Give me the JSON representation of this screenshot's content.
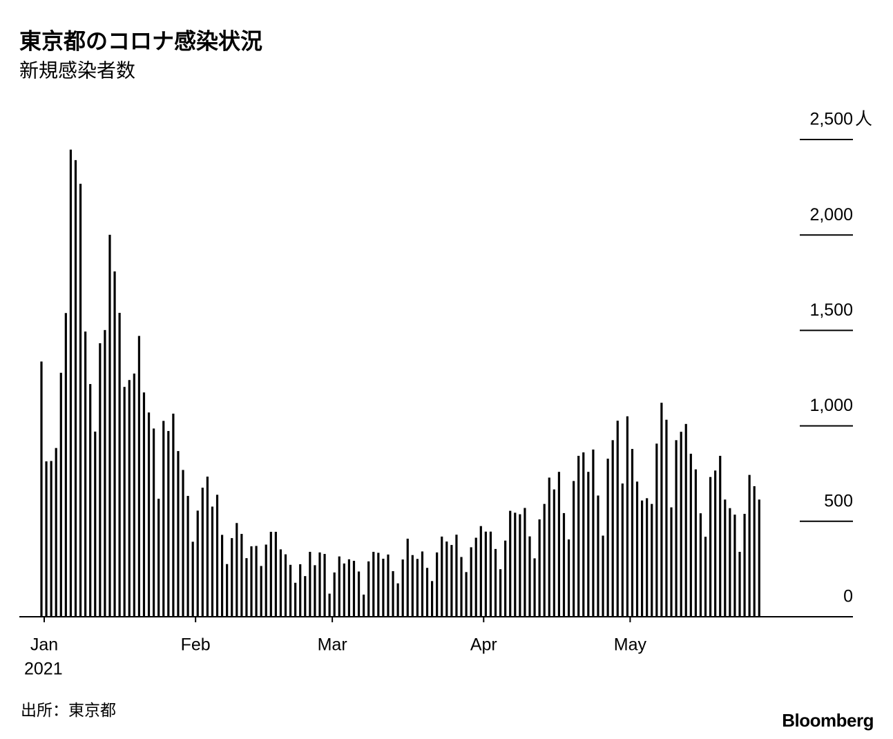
{
  "chart_data": {
    "type": "bar",
    "title": "東京都のコロナ感染状況",
    "subtitle": "新規感染者数",
    "source": "出所：東京都",
    "brand": "Bloomberg",
    "y_unit": "人",
    "x_year_label": "2021",
    "color": "#000000",
    "grid": true,
    "ylim": [
      0,
      2500
    ],
    "yticks": [
      0,
      500,
      {
        "value": 1000,
        "label": "1,000"
      },
      {
        "value": 1500,
        "label": "1,500"
      },
      {
        "value": 2000,
        "label": "2,000"
      },
      {
        "value": 2500,
        "label": "2,500"
      }
    ],
    "categories": [
      "Jan",
      null,
      null,
      null,
      null,
      null,
      null,
      null,
      null,
      null,
      null,
      null,
      null,
      null,
      null,
      null,
      null,
      null,
      null,
      null,
      null,
      null,
      null,
      null,
      null,
      null,
      null,
      null,
      null,
      null,
      null,
      "Feb",
      null,
      null,
      null,
      null,
      null,
      null,
      null,
      null,
      null,
      null,
      null,
      null,
      null,
      null,
      null,
      null,
      null,
      null,
      null,
      null,
      null,
      null,
      null,
      null,
      null,
      null,
      null,
      "Mar",
      null,
      null,
      null,
      null,
      null,
      null,
      null,
      null,
      null,
      null,
      null,
      null,
      null,
      null,
      null,
      null,
      null,
      null,
      null,
      null,
      null,
      null,
      null,
      null,
      null,
      null,
      null,
      null,
      null,
      null,
      "Apr",
      null,
      null,
      null,
      null,
      null,
      null,
      null,
      null,
      null,
      null,
      null,
      null,
      null,
      null,
      null,
      null,
      null,
      null,
      null,
      null,
      null,
      null,
      null,
      null,
      null,
      null,
      null,
      null,
      null,
      "May",
      null,
      null,
      null,
      null,
      null,
      null,
      null,
      null,
      null,
      null,
      null,
      null,
      null,
      null,
      null,
      null,
      null,
      null,
      null,
      null,
      null,
      null,
      null,
      null,
      null,
      null,
      null
    ],
    "values": [
      1337,
      814,
      816,
      884,
      1278,
      1591,
      2447,
      2392,
      2268,
      1494,
      1219,
      970,
      1433,
      1502,
      2001,
      1809,
      1592,
      1204,
      1240,
      1274,
      1471,
      1175,
      1070,
      986,
      618,
      1026,
      973,
      1064,
      868,
      769,
      633,
      393,
      556,
      676,
      734,
      577,
      639,
      429,
      276,
      412,
      491,
      434,
      307,
      369,
      371,
      266,
      378,
      445,
      445,
      353,
      327,
      272,
      178,
      275,
      213,
      340,
      270,
      337,
      329,
      121,
      232,
      316,
      279,
      301,
      293,
      237,
      116,
      290,
      340,
      335,
      304,
      326,
      239,
      175,
      300,
      409,
      323,
      303,
      342,
      256,
      187,
      337,
      420,
      394,
      376,
      430,
      313,
      234,
      364,
      414,
      475,
      446,
      446,
      355,
      249,
      399,
      555,
      545,
      537,
      570,
      421,
      306,
      510,
      591,
      729,
      667,
      759,
      543,
      405,
      711,
      843,
      861,
      759,
      876,
      635,
      425,
      828,
      925,
      1027,
      698,
      1050,
      879,
      708,
      609,
      621,
      591,
      907,
      1121,
      1032,
      573,
      925,
      969,
      1010,
      854,
      772,
      542,
      419,
      732,
      766,
      843,
      614,
      569,
      535,
      340,
      539,
      743,
      684,
      614
    ]
  }
}
